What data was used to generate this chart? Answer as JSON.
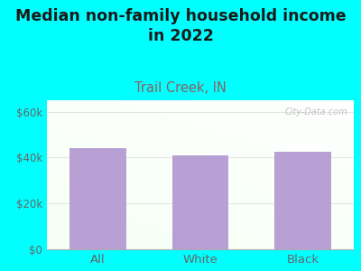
{
  "title": "Median non-family household income\nin 2022",
  "subtitle": "Trail Creek, IN",
  "categories": [
    "All",
    "White",
    "Black"
  ],
  "values": [
    44000,
    41000,
    42500
  ],
  "bar_color": "#b9a0d4",
  "title_fontsize": 12.5,
  "subtitle_fontsize": 10.5,
  "subtitle_color": "#8B6060",
  "title_color": "#1a1a1a",
  "tick_color": "#666666",
  "ylim": [
    0,
    65000
  ],
  "yticks": [
    0,
    20000,
    40000,
    60000
  ],
  "ytick_labels": [
    "$0",
    "$20k",
    "$40k",
    "$60k"
  ],
  "background_outer": "#00ffff",
  "watermark": "City-Data.com",
  "bar_width": 0.55,
  "grid_color": "#cccccc",
  "grid_alpha": 0.6
}
